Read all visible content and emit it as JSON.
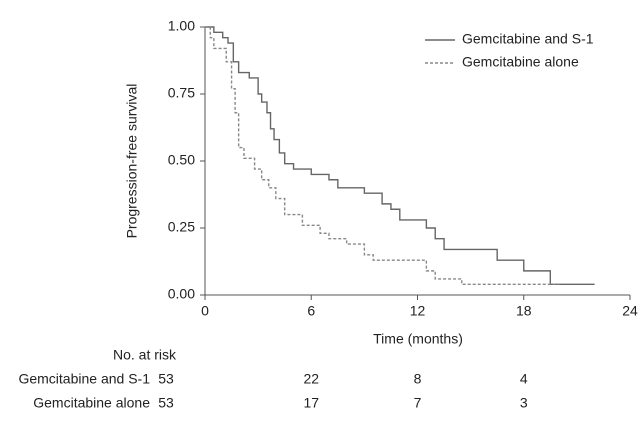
{
  "chart_data": {
    "type": "line",
    "step": "post",
    "xlabel": "Time (months)",
    "ylabel": "Progression-free survival",
    "xlim": [
      0,
      24
    ],
    "xticks": [
      0,
      6,
      12,
      18,
      24
    ],
    "ylim": [
      0,
      1
    ],
    "yticks": [
      {
        "value": 0,
        "label": "0.00"
      },
      {
        "value": 0.25,
        "label": "0.25"
      },
      {
        "value": 0.5,
        "label": "0.50"
      },
      {
        "value": 0.75,
        "label": "0.75"
      },
      {
        "value": 1,
        "label": "1.00"
      }
    ],
    "legend": "top-right",
    "series": [
      {
        "name": "Gemcitabine and S-1",
        "color": "#666666",
        "dash": "solid",
        "x": [
          0,
          0.5,
          1,
          1.3,
          1.6,
          1.9,
          2.5,
          3,
          3.2,
          3.5,
          3.7,
          3.9,
          4.2,
          4.5,
          5,
          6,
          7,
          7.5,
          9,
          10,
          10.5,
          11,
          12.5,
          13,
          13.5,
          16.5,
          18,
          19.5,
          22
        ],
        "values": [
          1,
          0.98,
          0.96,
          0.94,
          0.87,
          0.83,
          0.81,
          0.75,
          0.72,
          0.68,
          0.62,
          0.58,
          0.53,
          0.49,
          0.47,
          0.45,
          0.43,
          0.4,
          0.38,
          0.34,
          0.32,
          0.28,
          0.25,
          0.21,
          0.17,
          0.13,
          0.09,
          0.04,
          0.04
        ]
      },
      {
        "name": "Gemcitabine alone",
        "color": "#888888",
        "dash": "dashed",
        "x": [
          0,
          0.3,
          0.5,
          1.2,
          1.5,
          1.7,
          1.9,
          2.2,
          2.8,
          3.2,
          3.6,
          4,
          4.5,
          5.5,
          6.5,
          7,
          8,
          9,
          9.5,
          12.5,
          13,
          14.5,
          20
        ],
        "values": [
          1,
          0.96,
          0.92,
          0.87,
          0.77,
          0.68,
          0.55,
          0.51,
          0.47,
          0.43,
          0.4,
          0.36,
          0.3,
          0.26,
          0.23,
          0.21,
          0.19,
          0.15,
          0.13,
          0.09,
          0.06,
          0.04,
          0.04
        ]
      }
    ],
    "risk_table": {
      "title": "No. at risk",
      "rows": [
        {
          "name": "Gemcitabine and S-1",
          "values": [
            53,
            22,
            8,
            4
          ]
        },
        {
          "name": "Gemcitabine alone",
          "values": [
            53,
            17,
            7,
            3
          ]
        }
      ]
    }
  }
}
